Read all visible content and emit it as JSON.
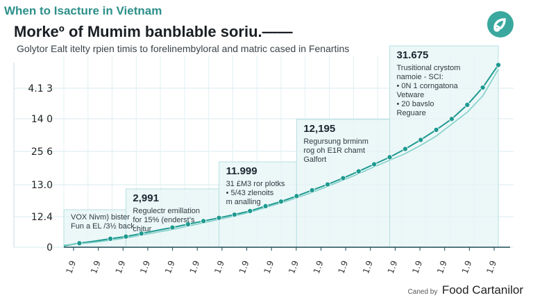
{
  "header": {
    "kicker": "When to Isacture in Vietnam",
    "title": "Morkeº of Mumim banblable soriu.——",
    "subtitle": "Golytor Ealt itelty rpien timis to forelinembyloral and matric cased in Fenartins"
  },
  "credit": {
    "label": "Caned by",
    "name": "Food Cartanilor"
  },
  "colors": {
    "accent": "#1e9a90",
    "line_light": "#7fcfc8",
    "panel": "#e6f4f5",
    "panel_border": "#b9dfe1",
    "axis": "#1c4a55"
  },
  "logo_icon": "leaf-link-icon",
  "chart_data": {
    "type": "line",
    "title": "Morkeº of Mumim banblable soriu.——",
    "xlabel": "",
    "ylabel": "",
    "yticks": [
      "4.1 3",
      "14 0",
      "25 6",
      "13.0",
      "12.4",
      "0"
    ],
    "xticks": [
      "1.9",
      "1.9",
      "1.9",
      "1.9",
      "1.9",
      "1.9",
      "1.9",
      "1.9",
      "1.9",
      "1.9",
      "1.9",
      "1.9",
      "1.9",
      "1.9",
      "1.9",
      "1.9",
      "1.9",
      "1.9"
    ],
    "x": [
      0,
      1,
      2,
      3,
      4,
      5,
      6,
      7,
      8,
      9,
      10,
      11,
      12,
      13,
      14,
      15,
      16,
      17,
      18,
      19,
      20,
      21,
      22,
      23,
      24,
      25,
      26,
      27,
      28
    ],
    "ylim": [
      0,
      100
    ],
    "grid": true,
    "legend": "none",
    "series": [
      {
        "values": [
          0.7,
          2.0,
          3.0,
          4.2,
          5.3,
          6.8,
          8.3,
          9.8,
          11.4,
          13.0,
          14.6,
          16.2,
          18.0,
          20.4,
          22.7,
          25.4,
          28.3,
          31.2,
          34.3,
          37.7,
          41.2,
          44.7,
          48.8,
          53.3,
          58.3,
          63.7,
          70.7,
          79.3,
          90.5
        ]
      },
      {
        "values": [
          1.0,
          1.7,
          2.5,
          3.5,
          4.6,
          6.0,
          7.4,
          8.8,
          10.5,
          12.1,
          13.8,
          15.5,
          17.4,
          19.7,
          22.0,
          24.5,
          27.2,
          30.2,
          33.3,
          36.5,
          39.9,
          43.2,
          46.5,
          50.6,
          55.2,
          61.1,
          67.0,
          75.1,
          88.3
        ]
      }
    ],
    "markers": [
      1,
      3,
      4,
      5,
      7,
      8,
      9,
      10,
      11,
      12,
      13,
      14,
      15,
      16,
      17,
      18,
      19,
      20,
      21,
      22,
      23,
      24,
      25,
      26,
      27,
      28
    ],
    "annotations": [
      {
        "value": "",
        "lines": [
          "VOX Nivm) bister",
          "Fun a EL /3½ back"
        ],
        "x_from": 0,
        "x_to": 4
      },
      {
        "value": "2,991",
        "lines": [
          "Regulectr emillation",
          "for 15% (enderst’s",
          "chitur"
        ],
        "x_from": 4,
        "x_to": 10
      },
      {
        "value": "11.999",
        "lines": [
          "31 £M3 ror plotks",
          "• 5/43 zlenoits",
          "m analling"
        ],
        "x_from": 10,
        "x_to": 15
      },
      {
        "value": "12,195",
        "lines": [
          "Regursung brminm",
          "rog oh E1R chamt",
          "Galfort"
        ],
        "x_from": 15,
        "x_to": 21
      },
      {
        "value": "31.675",
        "lines": [
          "Trusitional crystom",
          "namoie - SCI:",
          "• 0N 1 corngatona",
          "Vetware",
          "• 20 bavslo",
          "Reguare"
        ],
        "x_from": 21,
        "x_to": 28
      }
    ]
  }
}
